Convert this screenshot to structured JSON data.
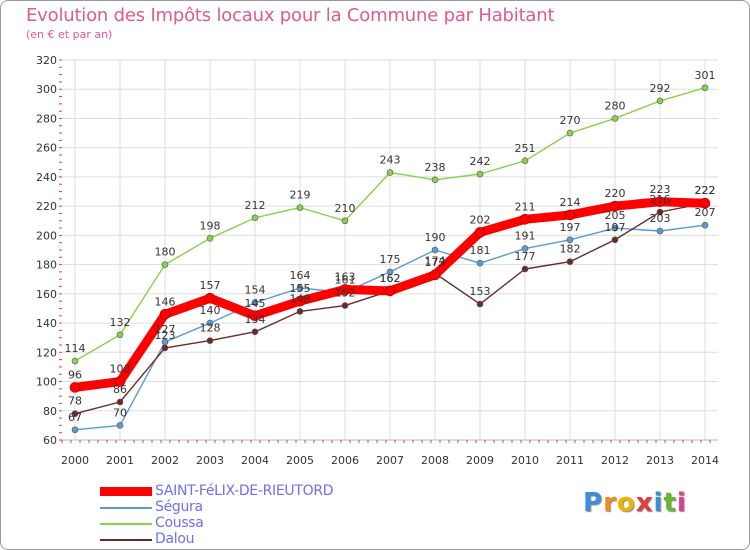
{
  "header": {
    "title": "Evolution des Impôts locaux pour la Commune par Habitant",
    "subtitle": "(en € et par an)"
  },
  "logo": {
    "text": "Proxiti"
  },
  "colors": {
    "title": "#e2598d",
    "legend_text": "#6f6ff0",
    "saint_felix": "#ff0000",
    "segura": "#5a9bd0",
    "coussa": "#88d14a",
    "dalou": "#6b2a2a",
    "grid": "#dddddd",
    "axis_tick": "#e4326b"
  },
  "chart_data": {
    "type": "line",
    "title": "Evolution des Impôts locaux pour la Commune par Habitant",
    "ylabel": "(en € et par an)",
    "xlabel": "",
    "x": [
      "2000",
      "2001",
      "2002",
      "2003",
      "2004",
      "2005",
      "2006",
      "2007",
      "2008",
      "2009",
      "2010",
      "2011",
      "2012",
      "2013",
      "2014"
    ],
    "ylim": [
      60,
      320
    ],
    "yticks": [
      60,
      80,
      100,
      120,
      140,
      160,
      180,
      200,
      220,
      240,
      260,
      280,
      300,
      320
    ],
    "grid": true,
    "legend_position": "bottom-left",
    "series": [
      {
        "name": "Coussa",
        "key": "coussa",
        "values": [
          114,
          132,
          180,
          198,
          212,
          219,
          210,
          243,
          238,
          242,
          251,
          270,
          280,
          292,
          301
        ]
      },
      {
        "name": "Ségura",
        "key": "segura",
        "values": [
          67,
          70,
          127,
          140,
          154,
          164,
          161,
          175,
          190,
          181,
          191,
          197,
          205,
          203,
          207
        ]
      },
      {
        "name": "Dalou",
        "key": "dalou",
        "values": [
          78,
          86,
          123,
          128,
          134,
          148,
          152,
          162,
          174,
          153,
          177,
          182,
          197,
          216,
          222
        ]
      },
      {
        "name": "SAINT-FéLIX-DE-RIEUTORD",
        "key": "saint_felix",
        "values": [
          96,
          100,
          146,
          157,
          145,
          155,
          163,
          162,
          173,
          202,
          211,
          214,
          220,
          223,
          222
        ]
      }
    ],
    "legend": [
      "SAINT-FéLIX-DE-RIEUTORD",
      "Ségura",
      "Coussa",
      "Dalou"
    ]
  }
}
